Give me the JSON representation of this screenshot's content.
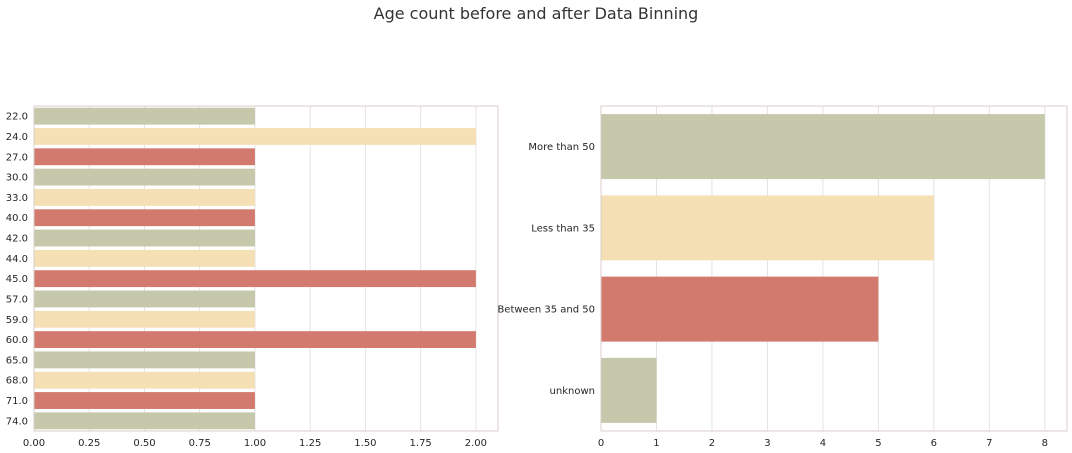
{
  "figure": {
    "title": "Age count before and after Data Binning"
  },
  "colors": {
    "bar_cycle": [
      "#c5c8aa",
      "#f5dfb5",
      "#d27a6e"
    ],
    "grid": "#e3e3e3",
    "frame": "#d9cfc8"
  },
  "chart_data": [
    {
      "type": "bar",
      "orientation": "horizontal",
      "categories": [
        "22.0",
        "24.0",
        "27.0",
        "30.0",
        "33.0",
        "40.0",
        "42.0",
        "44.0",
        "45.0",
        "57.0",
        "59.0",
        "60.0",
        "65.0",
        "68.0",
        "71.0",
        "74.0"
      ],
      "values": [
        1,
        2,
        1,
        1,
        1,
        1,
        1,
        1,
        2,
        1,
        1,
        2,
        1,
        1,
        1,
        1
      ],
      "xlim": [
        0,
        2.1
      ],
      "xticks": [
        "0.00",
        "0.25",
        "0.50",
        "0.75",
        "1.00",
        "1.25",
        "1.50",
        "1.75",
        "2.00"
      ],
      "grid": true
    },
    {
      "type": "bar",
      "orientation": "horizontal",
      "categories": [
        "More than 50",
        "Less than 35",
        "Between 35 and 50",
        "unknown"
      ],
      "values": [
        8,
        6,
        5,
        1
      ],
      "xlim": [
        0,
        8.4
      ],
      "xticks": [
        "0",
        "1",
        "2",
        "3",
        "4",
        "5",
        "6",
        "7",
        "8"
      ],
      "grid": true
    }
  ]
}
